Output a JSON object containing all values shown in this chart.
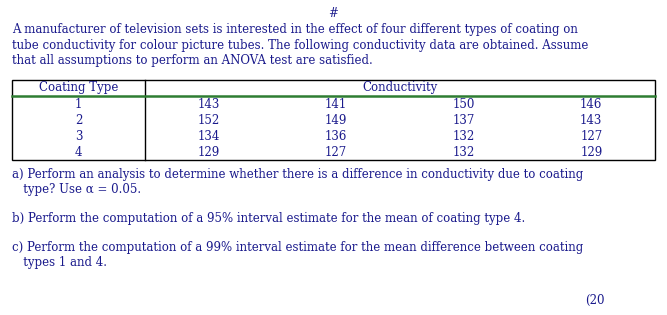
{
  "hash_symbol": "#",
  "intro_line1": "A manufacturer of television sets is interested in the effect of four different types of coating on",
  "intro_line2": "tube conductivity for colour picture tubes. The following conductivity data are obtained. Assume",
  "intro_line3": "that all assumptions to perform an ANOVA test are satisfied.",
  "col_header_left": "Coating Type",
  "col_header_right": "Conductivity",
  "rows": [
    {
      "type": "1",
      "values": [
        "143",
        "141",
        "150",
        "146"
      ]
    },
    {
      "type": "2",
      "values": [
        "152",
        "149",
        "137",
        "143"
      ]
    },
    {
      "type": "3",
      "values": [
        "134",
        "136",
        "132",
        "127"
      ]
    },
    {
      "type": "4",
      "values": [
        "129",
        "127",
        "132",
        "129"
      ]
    }
  ],
  "q_a_line1": "a) Perform an analysis to determine whether there is a difference in conductivity due to coating",
  "q_a_line2": "   type? Use α = 0.05.",
  "q_b": "b) Perform the computation of a 95% interval estimate for the mean of coating type 4.",
  "q_c_line1": "c) Perform the computation of a 99% interval estimate for the mean difference between coating",
  "q_c_line2": "   types 1 and 4.",
  "score_text": "(20",
  "text_color": "#1a1a8c",
  "green_line_color": "#2e7d32",
  "bg_color": "#ffffff",
  "fs_main": 8.5,
  "fs_hash": 8.5,
  "table_border_color": "#000000",
  "div_line_color": "#000000"
}
